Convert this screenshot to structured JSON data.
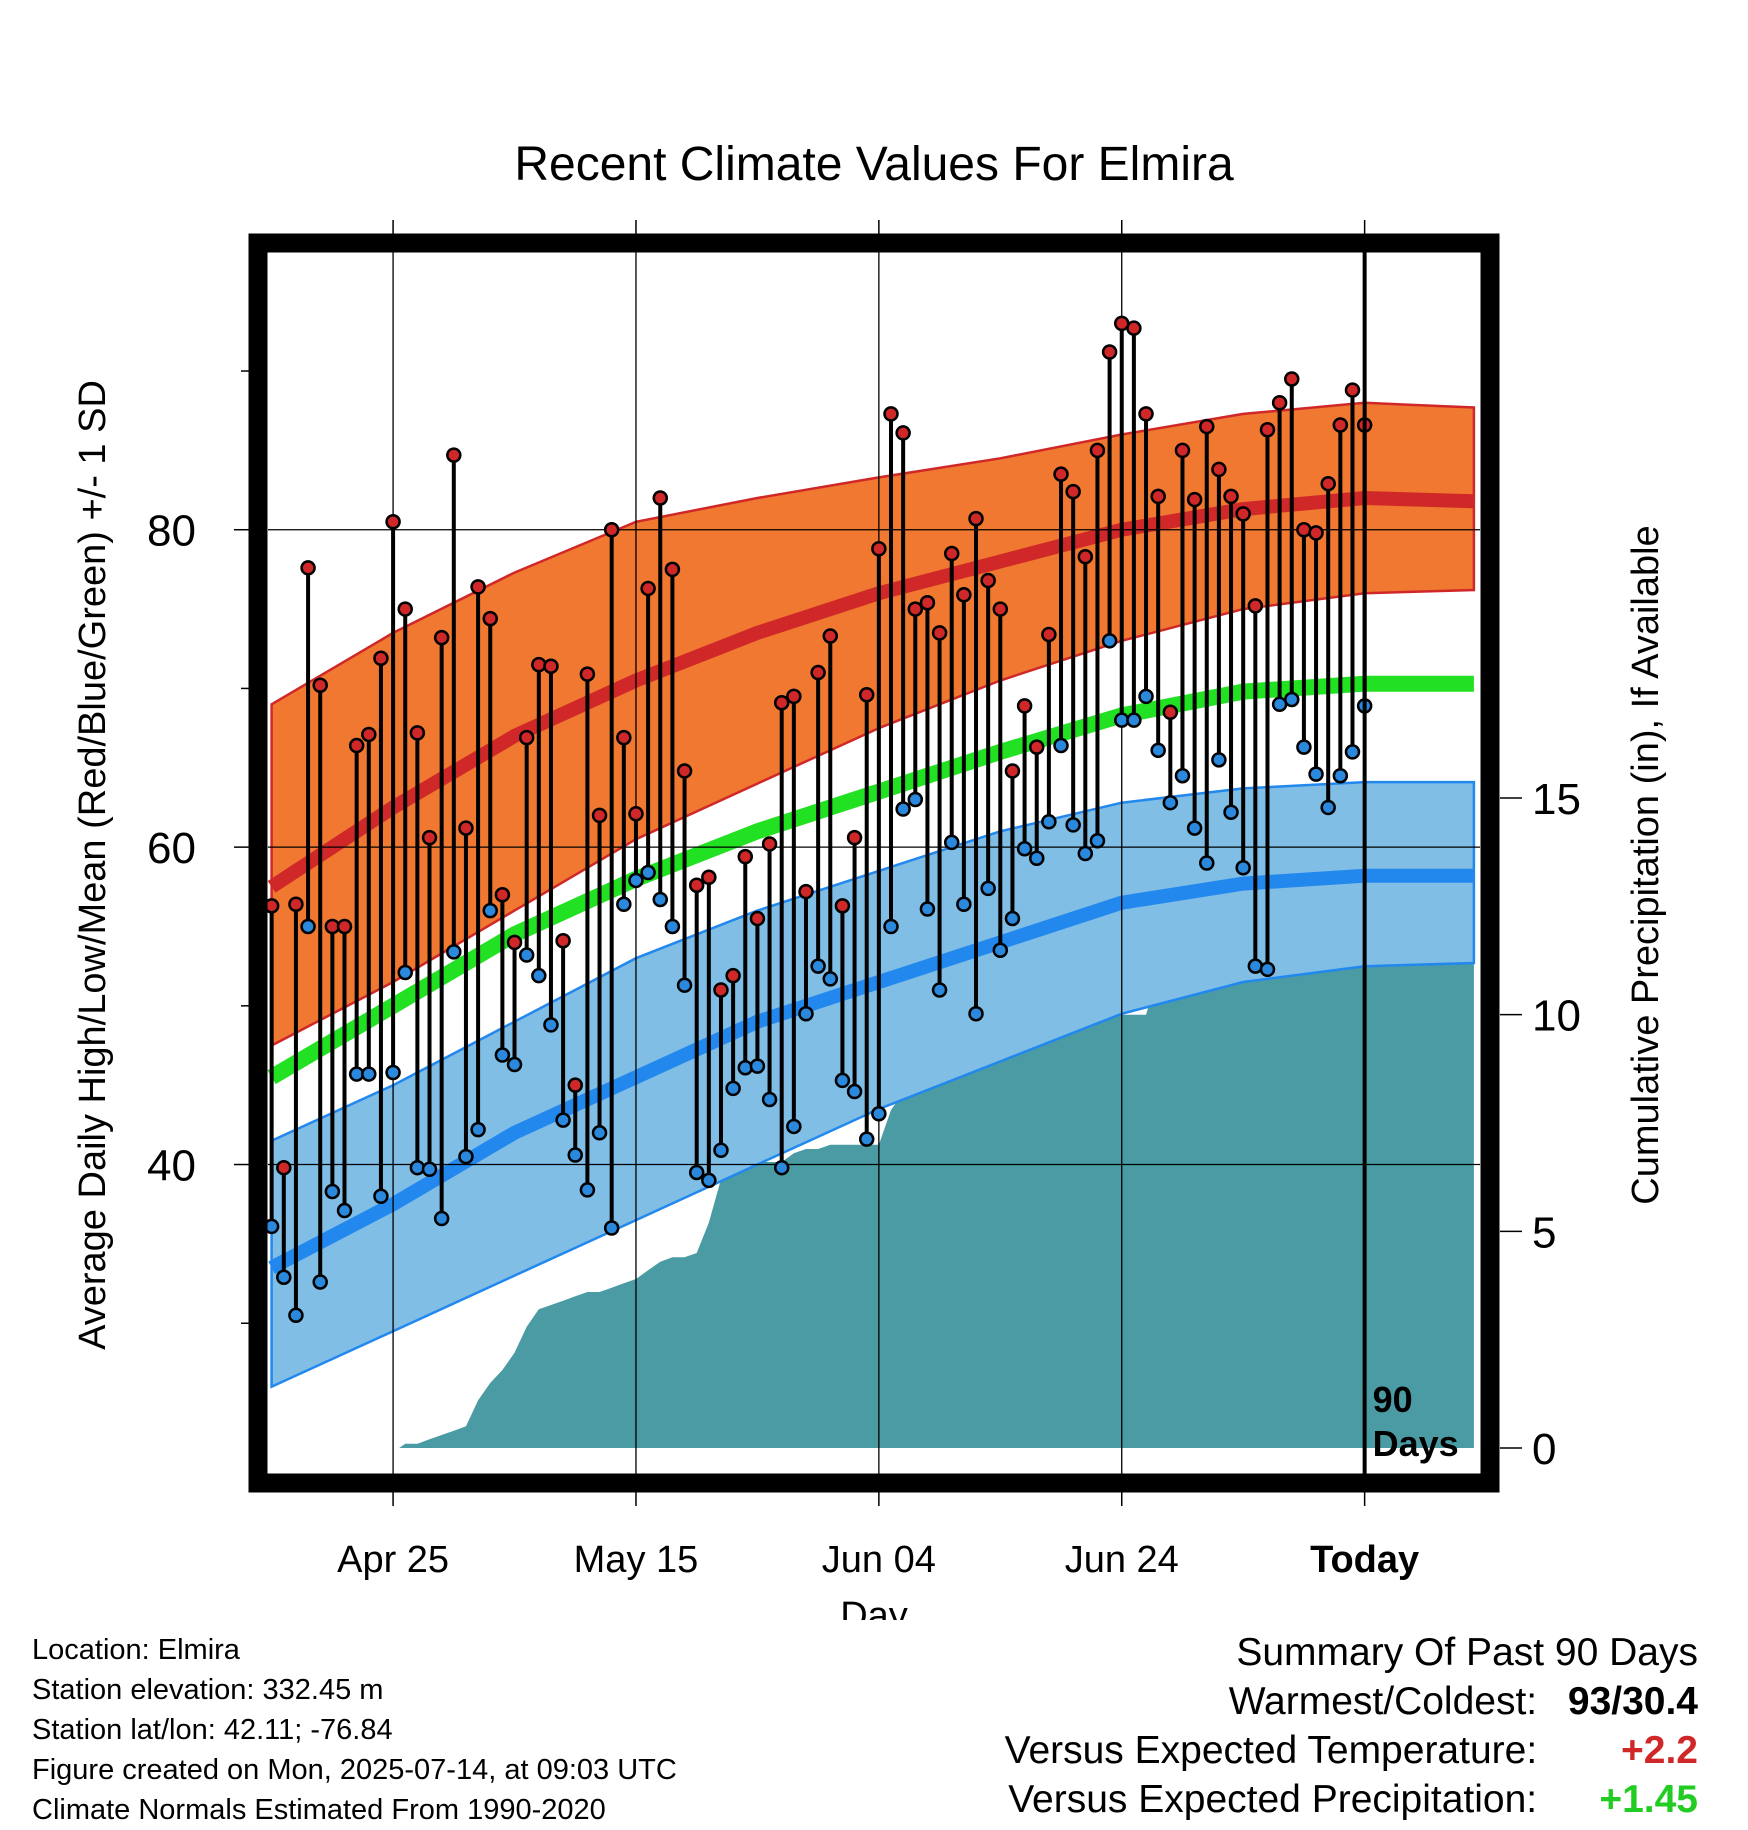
{
  "chart_data": {
    "type": "line",
    "title": "Recent Climate Values For Elmira",
    "xlabel": "Day",
    "ylabel": "Average Daily High/Low/Mean (Red/Blue/Green) +/- 1 SD",
    "y2label": "Cumulative Precipitation (in), If Available",
    "x_ticks": [
      {
        "day": 10,
        "label": "Apr 25"
      },
      {
        "day": 30,
        "label": "May 15"
      },
      {
        "day": 50,
        "label": "Jun 04"
      },
      {
        "day": 70,
        "label": "Jun 24"
      },
      {
        "day": 90,
        "label": "Today"
      }
    ],
    "xlim": [
      -0.3,
      99.5
    ],
    "ylim": [
      20.5,
      97.5
    ],
    "y_ticks": [
      40,
      60,
      80
    ],
    "y_minor_ticks": [
      30,
      50,
      70,
      90
    ],
    "y2lim": [
      -0.6,
      27.6
    ],
    "y2_ticks": [
      0,
      5,
      10,
      15
    ],
    "grid": true,
    "today_marker": {
      "day": 90,
      "label_line1": "90",
      "label_line2": "Days"
    },
    "normals": {
      "days": [
        0,
        10,
        20,
        30,
        40,
        50,
        60,
        70,
        80,
        90,
        99
      ],
      "high_mean": [
        57.5,
        62.5,
        67.0,
        70.5,
        73.5,
        76.0,
        78.0,
        80.0,
        81.3,
        82.0,
        81.8
      ],
      "high_sd_upper": [
        69.0,
        73.5,
        77.3,
        80.5,
        82.0,
        83.3,
        84.5,
        86.0,
        87.3,
        88.0,
        87.7
      ],
      "high_sd_lower": [
        47.5,
        51.5,
        56.0,
        60.5,
        64.0,
        67.5,
        70.5,
        73.0,
        75.0,
        76.0,
        76.2
      ],
      "mean_mean": [
        45.5,
        50.0,
        54.5,
        58.0,
        61.0,
        63.5,
        66.0,
        68.3,
        69.8,
        70.3,
        70.3
      ],
      "low_mean": [
        33.5,
        37.5,
        42.0,
        45.5,
        49.0,
        51.5,
        54.0,
        56.5,
        57.7,
        58.2,
        58.2
      ],
      "low_sd_upper": [
        41.5,
        45.0,
        49.0,
        53.0,
        56.0,
        58.5,
        61.0,
        62.8,
        63.7,
        64.1,
        64.1
      ],
      "low_sd_lower": [
        26.0,
        29.5,
        33.0,
        36.5,
        40.0,
        43.5,
        46.5,
        49.5,
        51.5,
        52.5,
        52.7
      ]
    },
    "daily": {
      "highs": [
        56.3,
        39.8,
        56.4,
        77.6,
        70.2,
        55.0,
        55.0,
        66.4,
        67.1,
        71.9,
        80.5,
        75.0,
        67.2,
        60.6,
        73.2,
        84.7,
        61.2,
        76.4,
        74.4,
        57.0,
        54.0,
        66.9,
        71.5,
        71.4,
        54.1,
        45.0,
        70.9,
        62.0,
        80.0,
        66.9,
        62.1,
        76.3,
        82.0,
        77.5,
        64.8,
        57.6,
        58.1,
        51.0,
        51.9,
        59.4,
        55.5,
        60.2,
        69.1,
        69.5,
        57.2,
        71.0,
        73.3,
        56.3,
        60.6,
        69.6,
        78.8,
        87.3,
        86.1,
        75.0,
        75.4,
        73.5,
        78.5,
        75.9,
        80.7,
        76.8,
        75.0,
        64.8,
        68.9,
        66.3,
        73.4,
        83.5,
        82.4,
        78.3,
        85.0,
        91.2,
        93.0,
        92.7,
        87.3,
        82.1,
        68.5,
        85.0,
        81.9,
        86.5,
        83.8,
        82.1,
        81.0,
        75.2,
        86.3,
        88.0,
        89.5,
        80.0,
        79.8,
        82.9,
        86.6,
        88.8,
        86.6
      ],
      "lows": [
        36.1,
        32.9,
        30.5,
        55.0,
        32.6,
        38.3,
        37.1,
        45.7,
        45.7,
        38.0,
        45.8,
        52.1,
        39.8,
        39.7,
        36.6,
        53.4,
        40.5,
        42.2,
        56.0,
        46.9,
        46.3,
        53.2,
        51.9,
        48.8,
        42.8,
        40.6,
        38.4,
        42.0,
        36.0,
        56.4,
        57.9,
        58.4,
        56.7,
        55.0,
        51.3,
        39.5,
        39.0,
        40.9,
        44.8,
        46.1,
        46.2,
        44.1,
        39.8,
        42.4,
        49.5,
        52.5,
        51.7,
        45.3,
        44.6,
        41.6,
        43.2,
        55.0,
        62.4,
        63.0,
        56.1,
        51.0,
        60.3,
        56.4,
        49.5,
        57.4,
        53.5,
        55.5,
        59.9,
        59.3,
        61.6,
        66.4,
        61.4,
        59.6,
        60.4,
        73.0,
        68.0,
        68.0,
        69.5,
        66.1,
        62.8,
        64.5,
        61.2,
        59.0,
        65.5,
        62.2,
        58.7,
        52.5,
        52.3,
        69.0,
        69.3,
        66.3,
        64.6,
        62.5,
        64.5,
        66.0,
        68.9
      ]
    },
    "precip_cumulative": {
      "days": [
        0,
        10.5,
        11,
        12,
        13,
        14,
        15,
        16,
        17,
        18,
        19,
        20,
        21,
        22,
        23,
        24,
        25,
        26,
        27,
        28,
        29,
        30,
        31,
        32,
        33,
        34,
        35,
        36,
        37,
        38,
        39,
        40,
        41,
        42,
        43,
        44,
        45,
        46,
        47,
        48,
        49,
        50,
        51,
        52,
        53,
        54,
        55,
        56,
        57,
        58,
        59,
        60,
        61,
        62,
        63,
        64,
        65,
        66,
        67,
        68,
        69,
        70,
        71,
        72,
        73,
        74,
        75,
        76,
        77,
        78,
        79,
        80,
        81,
        82,
        83,
        84,
        85,
        86,
        87,
        88,
        89,
        90,
        91,
        92,
        93,
        94,
        95,
        96,
        97,
        98,
        99
      ],
      "values": [
        0,
        0,
        0.1,
        0.1,
        0.2,
        0.3,
        0.4,
        0.5,
        1.1,
        1.5,
        1.8,
        2.2,
        2.8,
        3.2,
        3.3,
        3.4,
        3.5,
        3.6,
        3.6,
        3.7,
        3.8,
        3.9,
        4.1,
        4.3,
        4.4,
        4.4,
        4.5,
        5.2,
        6.2,
        6.4,
        6.5,
        6.6,
        6.6,
        6.6,
        6.8,
        6.9,
        6.9,
        7.0,
        7.0,
        7.0,
        7.0,
        7.0,
        7.8,
        8.2,
        8.5,
        8.8,
        9.5,
        9.6,
        9.6,
        9.6,
        9.7,
        9.7,
        9.7,
        9.7,
        9.8,
        9.8,
        9.8,
        9.9,
        10.0,
        10.0,
        10.0,
        10.0,
        10.0,
        10.0,
        10.9,
        11.0,
        11.0,
        11.3,
        11.3,
        11.4,
        11.5,
        11.5,
        11.6,
        11.6,
        11.6,
        11.7,
        11.7,
        11.9,
        11.9,
        11.9,
        12.0,
        12.4,
        12.4,
        12.4,
        12.4,
        12.4,
        12.4,
        12.4,
        12.4,
        12.4,
        12.4
      ]
    },
    "colors": {
      "high_band": "#f07830",
      "high_mean": "#d02828",
      "mean": "#22e022",
      "low_band": "#80bee6",
      "low_mean": "#2288ee",
      "precip": "#4a9ba3",
      "high_dot": "#d02828",
      "low_dot": "#2a88dd"
    }
  },
  "meta": {
    "location": "Location: Elmira",
    "elevation": "Station elevation: 332.45 m",
    "latlon": "Station lat/lon: 42.11; -76.84",
    "created": "Figure created on Mon, 2025-07-14, at 09:03 UTC",
    "normals": "Climate Normals Estimated From 1990-2020"
  },
  "summary": {
    "title": "Summary Of Past 90 Days",
    "warmest_label": "Warmest/Coldest:",
    "warmest_value": "93/30.4",
    "temp_label": "Versus Expected Temperature:",
    "temp_value": "+2.2",
    "temp_color": "#d02828",
    "precip_label": "Versus Expected Precipitation:",
    "precip_value": "+1.45",
    "precip_color": "#22cc22"
  }
}
